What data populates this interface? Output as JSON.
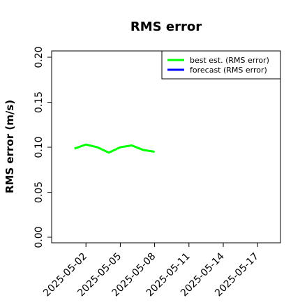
{
  "chart_data": {
    "type": "line",
    "title": "RMS error",
    "y_label": "RMS error (m/s)",
    "x": [
      "2025-05-01",
      "2025-05-02",
      "2025-05-03",
      "2025-05-04",
      "2025-05-05",
      "2025-05-06",
      "2025-05-07",
      "2025-05-08"
    ],
    "series": [
      {
        "name": "best est. (RMS error)",
        "color": "#00ff00",
        "values": [
          0.0985,
          0.103,
          0.1,
          0.094,
          0.1,
          0.102,
          0.097,
          0.095
        ]
      },
      {
        "name": "forecast (RMS error)",
        "color": "#0000ff",
        "values": [
          null,
          null,
          null,
          null,
          null,
          null,
          null,
          null
        ]
      }
    ],
    "xlim": [
      "2025-04-29",
      "2025-05-19"
    ],
    "xticks": [
      "2025-05-02",
      "2025-05-05",
      "2025-05-08",
      "2025-05-11",
      "2025-05-14",
      "2025-05-17"
    ],
    "highlight_xtick": "2025-05-08",
    "highlight_color": "#228b22",
    "ylim": [
      -0.0062,
      0.207
    ],
    "yticks": [
      {
        "value": 0,
        "label": "0.00"
      },
      {
        "value": 0.05,
        "label": "0.05"
      },
      {
        "value": 0.1,
        "label": "0.10"
      },
      {
        "value": 0.15,
        "label": "0.15"
      },
      {
        "value": 0.2,
        "label": "0.20"
      }
    ],
    "legend": "upper right",
    "grid": false
  }
}
